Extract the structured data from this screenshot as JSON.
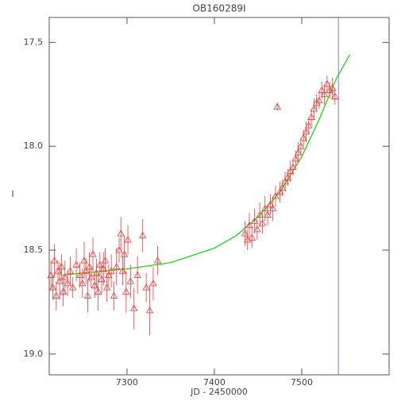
{
  "chart_data": {
    "type": "scatter",
    "title": "OB160289I",
    "x_label": "JD - 2450000",
    "y_label": "I",
    "xlim": [
      7211,
      7600
    ],
    "ylim": [
      19.1,
      17.38
    ],
    "xticks": [
      7300,
      7400,
      7500
    ],
    "yticks": [
      17.5,
      {
        "value": 18.0,
        "label": "18.0"
      },
      18.5,
      {
        "value": 19.0,
        "label": "19.0"
      }
    ],
    "vline": {
      "x": 7542,
      "color": "#7777ff"
    },
    "model": {
      "color": "#00dd00",
      "x": [
        7225,
        7250,
        7300,
        7350,
        7400,
        7425,
        7450,
        7475,
        7500,
        7520,
        7540,
        7555
      ],
      "values": [
        18.62,
        18.61,
        18.59,
        18.56,
        18.49,
        18.43,
        18.34,
        18.22,
        18.05,
        17.87,
        17.67,
        17.56
      ]
    },
    "series": [
      {
        "color": "#ff3333",
        "x": [
          7213,
          7215,
          7217,
          7219,
          7221,
          7223,
          7225,
          7227,
          7229,
          7232,
          7235,
          7238,
          7242,
          7246,
          7249,
          7251,
          7253,
          7255,
          7257,
          7259,
          7261,
          7263,
          7265,
          7267,
          7269,
          7271,
          7273,
          7275,
          7277,
          7279,
          7282,
          7285,
          7288,
          7291,
          7293,
          7295,
          7297,
          7299,
          7301,
          7304,
          7308,
          7312,
          7318,
          7322,
          7326,
          7330,
          7335,
          7435,
          7438,
          7440,
          7443,
          7446,
          7449,
          7452,
          7455,
          7458,
          7461,
          7464,
          7467,
          7470,
          7472,
          7475,
          7478,
          7481,
          7484,
          7487,
          7490,
          7493,
          7496,
          7499,
          7502,
          7505,
          7508,
          7511,
          7514,
          7517,
          7520,
          7523,
          7526,
          7529,
          7532,
          7535,
          7538
        ],
        "values": [
          18.62,
          18.68,
          18.55,
          18.72,
          18.6,
          18.65,
          18.58,
          18.7,
          18.63,
          18.66,
          18.6,
          18.68,
          18.57,
          18.62,
          18.66,
          18.55,
          18.6,
          18.72,
          18.58,
          18.63,
          18.52,
          18.67,
          18.61,
          18.7,
          18.57,
          18.64,
          18.59,
          18.55,
          18.68,
          18.62,
          18.6,
          18.72,
          18.58,
          18.5,
          18.42,
          18.6,
          18.52,
          18.7,
          18.45,
          18.65,
          18.78,
          18.62,
          18.43,
          18.68,
          18.79,
          18.66,
          18.55,
          18.42,
          18.45,
          18.38,
          18.44,
          18.36,
          18.4,
          18.33,
          18.37,
          18.3,
          18.33,
          18.28,
          18.3,
          18.24,
          17.81,
          18.22,
          18.2,
          18.17,
          18.15,
          18.12,
          18.1,
          18.06,
          18.03,
          18.0,
          17.96,
          17.93,
          17.9,
          17.86,
          17.82,
          17.79,
          17.78,
          17.73,
          17.75,
          17.7,
          17.73,
          17.72,
          17.76
        ],
        "errors": [
          0.07,
          0.06,
          0.08,
          0.07,
          0.05,
          0.09,
          0.06,
          0.07,
          0.08,
          0.06,
          0.07,
          0.05,
          0.08,
          0.06,
          0.07,
          0.09,
          0.06,
          0.08,
          0.07,
          0.05,
          0.08,
          0.06,
          0.07,
          0.09,
          0.06,
          0.07,
          0.08,
          0.06,
          0.07,
          0.05,
          0.08,
          0.07,
          0.09,
          0.06,
          0.08,
          0.07,
          0.09,
          0.1,
          0.07,
          0.08,
          0.1,
          0.09,
          0.08,
          0.07,
          0.12,
          0.08,
          0.07,
          0.06,
          0.05,
          0.06,
          0.05,
          0.06,
          0.05,
          0.06,
          0.05,
          0.06,
          0.05,
          0.05,
          0.06,
          0.05,
          0.02,
          0.05,
          0.04,
          0.05,
          0.04,
          0.05,
          0.04,
          0.04,
          0.05,
          0.04,
          0.04,
          0.05,
          0.04,
          0.04,
          0.05,
          0.04,
          0.04,
          0.04,
          0.05,
          0.04,
          0.04,
          0.05,
          0.04
        ]
      }
    ]
  }
}
